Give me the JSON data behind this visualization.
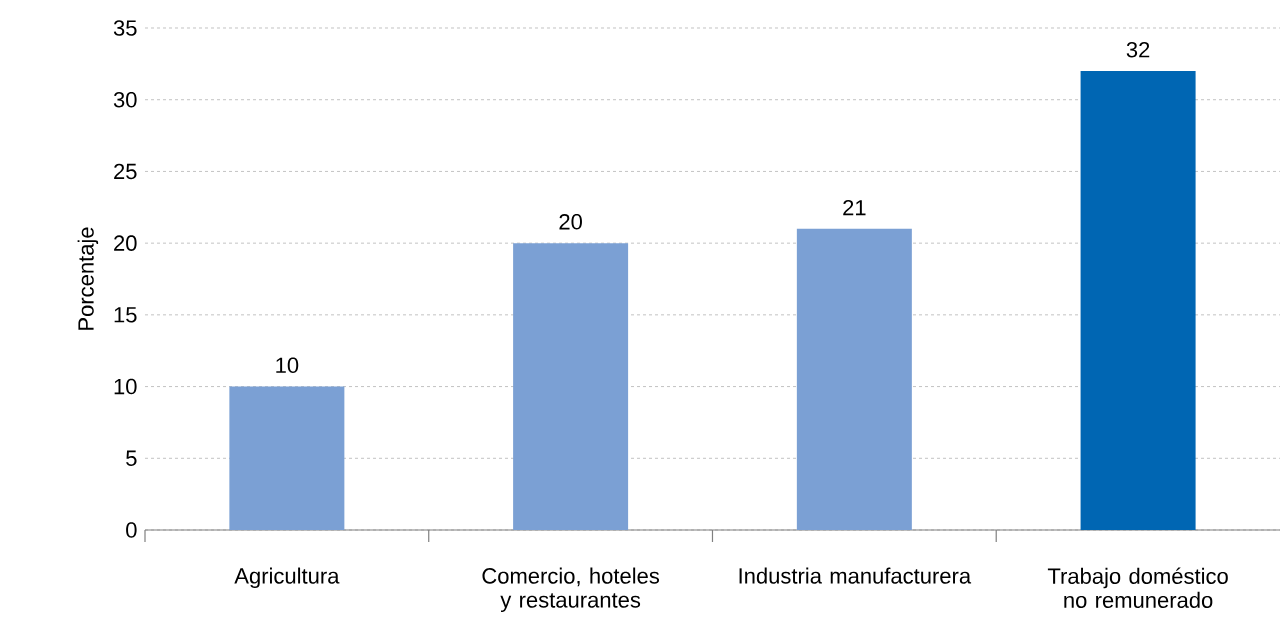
{
  "chart_data": {
    "type": "bar",
    "ylabel": "Porcentaje",
    "categories": [
      "Agricultura",
      "Comercio, hoteles y restaurantes",
      "Industria manufacturera",
      "Trabajo doméstico no remunerado"
    ],
    "values": [
      10,
      20,
      21,
      32
    ],
    "colors": [
      "#7ba0d4",
      "#7ba0d4",
      "#7ba0d4",
      "#0066b3"
    ],
    "ylim": [
      0,
      35
    ],
    "yticks": [
      0,
      5,
      10,
      15,
      20,
      25,
      30,
      35
    ],
    "grid": "y",
    "data_labels": true
  }
}
